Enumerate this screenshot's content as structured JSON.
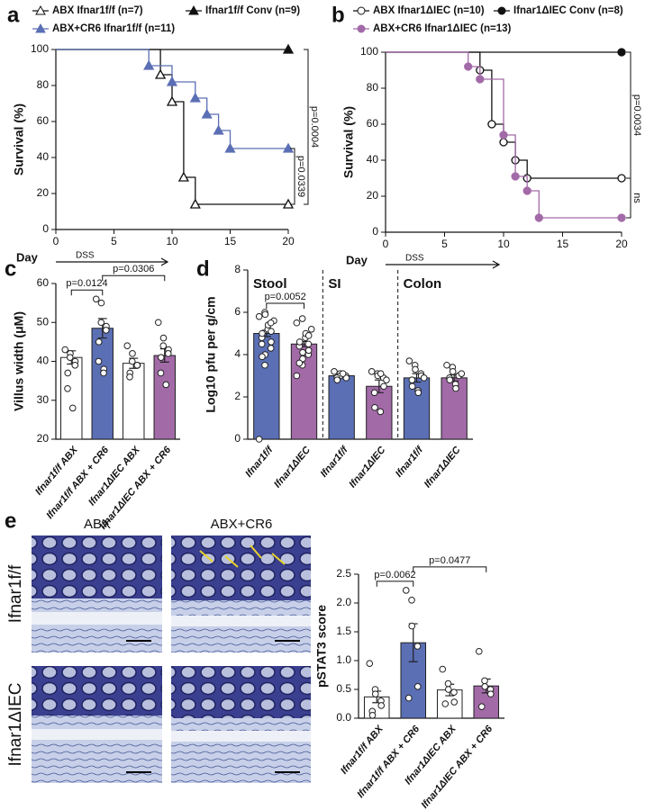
{
  "chart_data": [
    {
      "panel": "a",
      "type": "survival",
      "xlabel": "Day",
      "period": "DSS",
      "ylabel": "Survival (%)",
      "xlim": [
        0,
        20
      ],
      "xticks": [
        0,
        5,
        10,
        15,
        20
      ],
      "ylim": [
        0,
        100
      ],
      "yticks": [
        0,
        20,
        40,
        60,
        80,
        100
      ],
      "series": [
        {
          "name": "ABX Ifnar1f/f (n=7)",
          "color": "#111111",
          "marker": "open-triangle",
          "x": [
            0,
            9,
            10,
            11,
            12,
            20
          ],
          "values": [
            100,
            86,
            71,
            29,
            14,
            14
          ]
        },
        {
          "name": "Ifnar1f/f Conv (n=9)",
          "color": "#111111",
          "marker": "filled-triangle",
          "x": [
            0,
            20
          ],
          "values": [
            100,
            100
          ]
        },
        {
          "name": "ABX+CR6 Ifnar1f/f (n=11)",
          "color": "#5b6fb5",
          "marker": "filled-triangle",
          "x": [
            0,
            8,
            10,
            12,
            13,
            14,
            15,
            20
          ],
          "values": [
            100,
            91,
            82,
            73,
            64,
            55,
            45,
            45
          ]
        }
      ],
      "annotations": [
        {
          "text": "p=0.0004",
          "between": [
            "Ifnar1f/f Conv (n=9)",
            "ABX Ifnar1f/f (n=7)"
          ]
        },
        {
          "text": "p=0.0339",
          "between": [
            "ABX+CR6 Ifnar1f/f (n=11)",
            "ABX Ifnar1f/f (n=7)"
          ]
        }
      ]
    },
    {
      "panel": "b",
      "type": "survival",
      "xlabel": "Day",
      "period": "DSS",
      "ylabel": "Survival (%)",
      "xlim": [
        0,
        20
      ],
      "xticks": [
        0,
        5,
        10,
        15,
        20
      ],
      "ylim": [
        0,
        100
      ],
      "yticks": [
        0,
        20,
        40,
        60,
        80,
        100
      ],
      "series": [
        {
          "name": "ABX Ifnar1ΔIEC (n=10)",
          "color": "#111111",
          "marker": "open-circle",
          "x": [
            0,
            8,
            9,
            10,
            11,
            12,
            20
          ],
          "values": [
            100,
            90,
            60,
            50,
            40,
            30,
            30
          ]
        },
        {
          "name": "Ifnar1ΔIEC Conv (n=8)",
          "color": "#111111",
          "marker": "filled-circle",
          "x": [
            0,
            20
          ],
          "values": [
            100,
            100
          ]
        },
        {
          "name": "ABX+CR6 Ifnar1ΔIEC (n=13)",
          "color": "#a36aa8",
          "marker": "filled-circle",
          "x": [
            0,
            7,
            8,
            10,
            11,
            12,
            13,
            20
          ],
          "values": [
            100,
            92,
            85,
            54,
            31,
            23,
            8,
            8
          ]
        }
      ],
      "annotations": [
        {
          "text": "p=0.0034",
          "between": [
            "Ifnar1ΔIEC Conv (n=8)",
            "ABX Ifnar1ΔIEC (n=10)"
          ]
        },
        {
          "text": "ns",
          "between": [
            "ABX Ifnar1ΔIEC (n=10)",
            "ABX+CR6 Ifnar1ΔIEC (n=13)"
          ]
        }
      ]
    },
    {
      "panel": "c",
      "type": "bar",
      "ylabel": "Villus width (μM)",
      "ylim": [
        20,
        60
      ],
      "yticks": [
        20,
        30,
        40,
        50,
        60
      ],
      "categories": [
        "Ifnar1f/f ABX",
        "Ifnar1f/f ABX + CR6",
        "Ifnar1ΔIEC ABX",
        "Ifnar1ΔIEC ABX + CR6"
      ],
      "colors": [
        "#ffffff",
        "#5b6fb5",
        "#ffffff",
        "#a36aa8"
      ],
      "values": [
        41,
        48.5,
        39.5,
        41.5
      ],
      "errors": [
        1.7,
        2.5,
        1.3,
        1.7
      ],
      "points": [
        [
          43,
          42,
          41,
          40,
          39,
          37,
          33,
          28
        ],
        [
          56,
          55,
          50,
          49,
          48,
          45,
          40,
          38,
          37
        ],
        [
          44,
          42,
          40,
          39,
          39,
          37,
          36
        ],
        [
          50,
          46,
          44,
          43,
          42,
          41,
          37,
          34
        ]
      ],
      "annotations": [
        {
          "text": "p=0.0124",
          "between": [
            "Ifnar1f/f ABX",
            "Ifnar1f/f ABX + CR6"
          ]
        },
        {
          "text": "p=0.0306",
          "between": [
            "Ifnar1f/f ABX + CR6",
            "Ifnar1ΔIEC ABX + CR6"
          ]
        }
      ]
    },
    {
      "panel": "d",
      "type": "bar",
      "ylabel": "Log10 pfu per g/cm",
      "ylim": [
        0,
        8
      ],
      "yticks": [
        0,
        2,
        4,
        6,
        8
      ],
      "groups": [
        "Stool",
        "SI",
        "Colon"
      ],
      "categories": [
        "Ifnar1f/f",
        "Ifnar1ΔIEC",
        "Ifnar1f/f",
        "Ifnar1ΔIEC",
        "Ifnar1f/f",
        "Ifnar1ΔIEC"
      ],
      "colors": [
        "#5b6fb5",
        "#a36aa8",
        "#5b6fb5",
        "#a36aa8",
        "#5b6fb5",
        "#a36aa8"
      ],
      "values": [
        5.0,
        4.5,
        3.0,
        2.5,
        2.9,
        2.9
      ],
      "errors": [
        0.15,
        0.12,
        0.08,
        0.3,
        0.2,
        0.15
      ],
      "points": [
        [
          0.0,
          3.5,
          4.0,
          4.3,
          4.6,
          4.8,
          5.0,
          5.2,
          5.4,
          5.6,
          5.8,
          6.0,
          5.9,
          5.5,
          5.1,
          4.5,
          3.9
        ],
        [
          3.0,
          3.5,
          3.8,
          4.0,
          4.2,
          4.4,
          4.6,
          4.8,
          5.0,
          5.2,
          5.5,
          5.7,
          4.1,
          4.5,
          4.9,
          3.6
        ],
        [
          3.2,
          3.1,
          3.0,
          3.0,
          2.9,
          2.9,
          2.8,
          3.1
        ],
        [
          3.2,
          3.1,
          3.0,
          2.9,
          2.5,
          2.2,
          1.5,
          1.3,
          3.1,
          2.8
        ],
        [
          3.7,
          3.5,
          3.3,
          3.1,
          3.0,
          2.8,
          2.5,
          2.3,
          2.2,
          2.9
        ],
        [
          3.5,
          3.4,
          3.2,
          3.0,
          3.0,
          2.9,
          2.8,
          2.6,
          2.4,
          3.1
        ]
      ],
      "annotations": [
        {
          "text": "p=0.0052",
          "between": [
            "Ifnar1f/f",
            "Ifnar1ΔIEC"
          ]
        }
      ]
    },
    {
      "panel": "e",
      "type": "bar",
      "ylabel": "pSTAT3 score",
      "ylim": [
        0,
        2.5
      ],
      "yticks": [
        {
          "value": 0,
          "label": "0.0"
        },
        0.5,
        {
          "value": 1,
          "label": "1.0"
        },
        1.5,
        {
          "value": 2,
          "label": "2.0"
        },
        2.5
      ],
      "categories": [
        "Ifnar1f/f ABX",
        "Ifnar1f/f ABX + CR6",
        "Ifnar1ΔIEC ABX",
        "Ifnar1ΔIEC ABX + CR6"
      ],
      "colors": [
        "#ffffff",
        "#5b6fb5",
        "#ffffff",
        "#a36aa8"
      ],
      "values": [
        0.37,
        1.31,
        0.49,
        0.56
      ],
      "errors": [
        0.1,
        0.33,
        0.1,
        0.12
      ],
      "points": [
        [
          0.95,
          0.5,
          0.42,
          0.3,
          0.22,
          0.12,
          0.05
        ],
        [
          2.22,
          2.05,
          1.6,
          1.25,
          0.55,
          0.35
        ],
        [
          0.85,
          0.6,
          0.5,
          0.45,
          0.28,
          0.25
        ],
        [
          1.16,
          0.65,
          0.55,
          0.5,
          0.42,
          0.2
        ]
      ],
      "annotations": [
        {
          "text": "p=0.0062",
          "between": [
            "Ifnar1f/f ABX",
            "Ifnar1f/f ABX + CR6"
          ]
        },
        {
          "text": "p=0.0477",
          "between": [
            "Ifnar1f/f ABX + CR6",
            "Ifnar1ΔIEC ABX + CR6"
          ]
        }
      ]
    }
  ],
  "micrographs": {
    "columns": [
      "ABX",
      "ABX+CR6"
    ],
    "rows": [
      "Ifnar1f/f",
      "Ifnar1ΔIEC"
    ]
  }
}
